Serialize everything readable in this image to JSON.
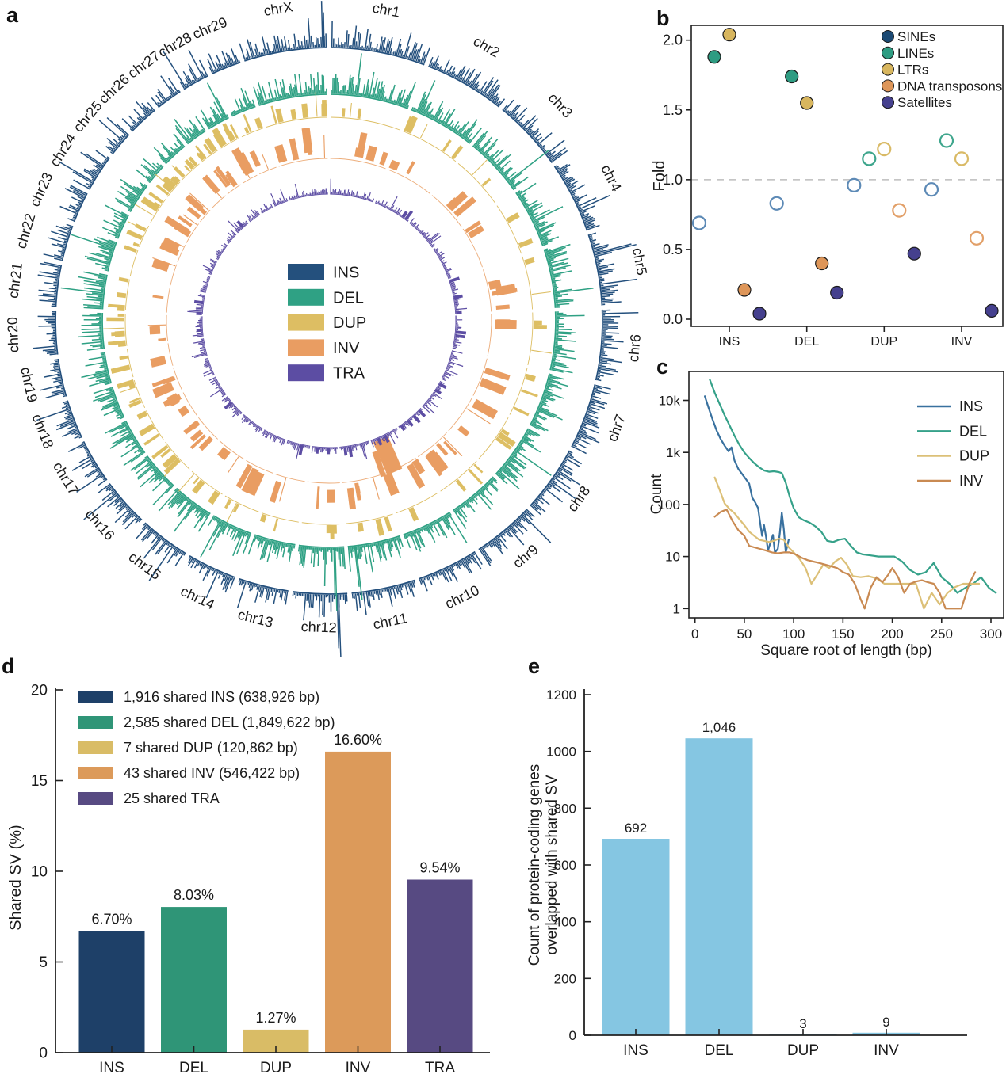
{
  "panels": {
    "a": "a",
    "b": "b",
    "c": "c",
    "d": "d",
    "e": "e"
  },
  "chart_data": [
    {
      "panel": "a",
      "type": "circos",
      "legend": [
        {
          "label": "INS",
          "color": "#24507d"
        },
        {
          "label": "DEL",
          "color": "#2fa184"
        },
        {
          "label": "DUP",
          "color": "#ddbe63"
        },
        {
          "label": "INV",
          "color": "#e99d62"
        },
        {
          "label": "TRA",
          "color": "#5c4da3"
        }
      ],
      "chromosomes": [
        {
          "name": "chr1",
          "length": 158
        },
        {
          "name": "chr2",
          "length": 136
        },
        {
          "name": "chr3",
          "length": 121
        },
        {
          "name": "chr4",
          "length": 120
        },
        {
          "name": "chr5",
          "length": 120
        },
        {
          "name": "chr6",
          "length": 118
        },
        {
          "name": "chr7",
          "length": 111
        },
        {
          "name": "chr8",
          "length": 113
        },
        {
          "name": "chr9",
          "length": 105
        },
        {
          "name": "chr10",
          "length": 104
        },
        {
          "name": "chr11",
          "length": 107
        },
        {
          "name": "chr12",
          "length": 91
        },
        {
          "name": "chr13",
          "length": 84
        },
        {
          "name": "chr14",
          "length": 84
        },
        {
          "name": "chr15",
          "length": 85
        },
        {
          "name": "chr16",
          "length": 81
        },
        {
          "name": "chr17",
          "length": 75
        },
        {
          "name": "chr18",
          "length": 66
        },
        {
          "name": "chr19",
          "length": 64
        },
        {
          "name": "chr20",
          "length": 72
        },
        {
          "name": "chr21",
          "length": 70
        },
        {
          "name": "chr22",
          "length": 61
        },
        {
          "name": "chr23",
          "length": 52
        },
        {
          "name": "chr24",
          "length": 63
        },
        {
          "name": "chr25",
          "length": 43
        },
        {
          "name": "chr26",
          "length": 52
        },
        {
          "name": "chr27",
          "length": 45
        },
        {
          "name": "chr28",
          "length": 46
        },
        {
          "name": "chr29",
          "length": 51
        },
        {
          "name": "chrX",
          "length": 139
        }
      ],
      "rings": {
        "ins": {
          "label": "INS",
          "r": 345,
          "h": 45,
          "color": "#24507d",
          "seed": 7,
          "features": [
            {
              "chrom": "chr12",
              "pos": 0.16,
              "h": 90
            },
            {
              "chrom": "chrX",
              "pos": 0.95,
              "h": 58
            }
          ]
        },
        "del": {
          "label": "DEL",
          "r": 286,
          "h": 55,
          "color": "#2fa184",
          "seed": 13,
          "features": [
            {
              "chrom": "chr12",
              "pos": 0.2,
              "h": 80
            },
            {
              "chrom": "chr11",
              "pos": 0.85,
              "h": 68
            }
          ]
        },
        "dup": {
          "label": "DUP",
          "r": 257,
          "h": 24,
          "color": "#ddbe63",
          "seed": 29
        },
        "inv": {
          "label": "INV",
          "r": 205,
          "h": 28,
          "color": "#e99d62",
          "seed": 41,
          "feature": {
            "angle": 156.5,
            "r0": 163,
            "h": 45,
            "width_deg": 6.3
          }
        },
        "tra": {
          "label": "TRA",
          "r": 160,
          "h": 14,
          "color": "#5c4da3",
          "seed": 53
        }
      }
    },
    {
      "panel": "b",
      "type": "scatter",
      "ylabel": "Fold",
      "yticks": [
        "0.0",
        "0.5",
        "1.0",
        "1.5",
        "2.0"
      ],
      "groups": [
        "INS",
        "DEL",
        "DUP",
        "INV"
      ],
      "refline": 1.0,
      "series": [
        {
          "name": "SINEs",
          "color": "#1c4a74",
          "open_color": "#5d8ab6",
          "values": [
            0.69,
            0.83,
            0.96,
            0.93
          ],
          "filled": [
            false,
            false,
            false,
            false
          ]
        },
        {
          "name": "LINEs",
          "color": "#2e9c82",
          "open_color": "#3fa68d",
          "values": [
            1.88,
            1.74,
            1.15,
            1.28
          ],
          "filled": [
            true,
            true,
            false,
            false
          ]
        },
        {
          "name": "LTRs",
          "color": "#d8b65e",
          "open_color": "#d9ba66",
          "values": [
            2.04,
            1.55,
            1.22,
            1.15
          ],
          "filled": [
            true,
            true,
            false,
            false
          ]
        },
        {
          "name": "DNA transposons",
          "color": "#de9659",
          "open_color": "#e2a069",
          "values": [
            0.21,
            0.4,
            0.78,
            0.58
          ],
          "filled": [
            true,
            true,
            false,
            false
          ]
        },
        {
          "name": "Satellites",
          "color": "#45408e",
          "open_color": "#45408e",
          "values": [
            0.04,
            0.19,
            0.47,
            0.06
          ],
          "filled": [
            true,
            true,
            true,
            true
          ]
        }
      ]
    },
    {
      "panel": "c",
      "type": "line",
      "xlabel": "Square root of length (bp)",
      "ylabel": "Count",
      "xticks": [
        0,
        50,
        100,
        150,
        200,
        250,
        300
      ],
      "ytick_values": [
        1,
        10,
        100,
        1000,
        10000
      ],
      "ytick_labels": [
        "1",
        "10",
        "100",
        "1k",
        "10k"
      ],
      "series": [
        {
          "name": "INS",
          "color": "#39719f",
          "points": [
            [
              10,
              12000
            ],
            [
              14,
              7000
            ],
            [
              18,
              4200
            ],
            [
              22,
              2600
            ],
            [
              26,
              1800
            ],
            [
              30,
              1350
            ],
            [
              34,
              1050
            ],
            [
              37,
              1250
            ],
            [
              40,
              700
            ],
            [
              44,
              480
            ],
            [
              48,
              380
            ],
            [
              52,
              300
            ],
            [
              55,
              250
            ],
            [
              58,
              135
            ],
            [
              61,
              110
            ],
            [
              64,
              85
            ],
            [
              66,
              45
            ],
            [
              68,
              25
            ],
            [
              70,
              40
            ],
            [
              72,
              24
            ],
            [
              74,
              13
            ],
            [
              77,
              20
            ],
            [
              79,
              26
            ],
            [
              81,
              12
            ],
            [
              84,
              14
            ],
            [
              86,
              28
            ],
            [
              88,
              70
            ],
            [
              90,
              34
            ],
            [
              92,
              12
            ],
            [
              95,
              21
            ]
          ]
        },
        {
          "name": "DEL",
          "color": "#35a189",
          "points": [
            [
              15,
              25000
            ],
            [
              20,
              14000
            ],
            [
              25,
              8500
            ],
            [
              30,
              5200
            ],
            [
              35,
              3300
            ],
            [
              40,
              2100
            ],
            [
              45,
              1400
            ],
            [
              50,
              1000
            ],
            [
              55,
              780
            ],
            [
              60,
              620
            ],
            [
              65,
              520
            ],
            [
              70,
              450
            ],
            [
              75,
              425
            ],
            [
              80,
              435
            ],
            [
              85,
              420
            ],
            [
              88,
              400
            ],
            [
              92,
              260
            ],
            [
              96,
              140
            ],
            [
              100,
              85
            ],
            [
              105,
              57
            ],
            [
              110,
              50
            ],
            [
              116,
              45
            ],
            [
              122,
              38
            ],
            [
              128,
              30
            ],
            [
              134,
              20
            ],
            [
              140,
              19
            ],
            [
              146,
              21
            ],
            [
              152,
              22
            ],
            [
              158,
              16
            ],
            [
              164,
              12
            ],
            [
              170,
              11
            ],
            [
              178,
              10.5
            ],
            [
              186,
              10
            ],
            [
              194,
              10
            ],
            [
              202,
              10
            ],
            [
              210,
              8
            ],
            [
              218,
              5.5
            ],
            [
              226,
              4.5
            ],
            [
              234,
              5
            ],
            [
              242,
              7.5
            ],
            [
              250,
              4
            ],
            [
              258,
              3
            ],
            [
              266,
              2
            ],
            [
              274,
              2.5
            ],
            [
              282,
              3
            ],
            [
              290,
              4
            ],
            [
              298,
              2.5
            ],
            [
              305,
              2
            ]
          ]
        },
        {
          "name": "DUP",
          "color": "#dcc078",
          "points": [
            [
              20,
              330
            ],
            [
              25,
              190
            ],
            [
              30,
              105
            ],
            [
              35,
              82
            ],
            [
              40,
              68
            ],
            [
              45,
              52
            ],
            [
              50,
              40
            ],
            [
              55,
              30
            ],
            [
              60,
              25
            ],
            [
              65,
              21
            ],
            [
              70,
              20
            ],
            [
              75,
              19
            ],
            [
              80,
              20
            ],
            [
              85,
              22
            ],
            [
              90,
              21
            ],
            [
              95,
              15
            ],
            [
              100,
              12
            ],
            [
              106,
              9
            ],
            [
              112,
              6
            ],
            [
              118,
              3
            ],
            [
              124,
              4.5
            ],
            [
              130,
              7
            ],
            [
              136,
              6
            ],
            [
              142,
              8
            ],
            [
              148,
              9.5
            ],
            [
              154,
              7
            ],
            [
              160,
              4.2
            ],
            [
              168,
              4
            ],
            [
              176,
              4.2
            ],
            [
              184,
              3.8
            ],
            [
              192,
              3
            ],
            [
              200,
              3
            ],
            [
              208,
              3
            ],
            [
              216,
              3
            ],
            [
              224,
              3
            ],
            [
              232,
              1
            ],
            [
              240,
              2
            ],
            [
              248,
              1.2
            ],
            [
              256,
              2
            ],
            [
              264,
              2.6
            ],
            [
              272,
              3
            ],
            [
              280,
              3
            ],
            [
              288,
              3
            ]
          ]
        },
        {
          "name": "INV",
          "color": "#c98a52",
          "points": [
            [
              20,
              58
            ],
            [
              26,
              72
            ],
            [
              32,
              80
            ],
            [
              38,
              48
            ],
            [
              44,
              32
            ],
            [
              50,
              25
            ],
            [
              55,
              16
            ],
            [
              60,
              15
            ],
            [
              66,
              14
            ],
            [
              72,
              13
            ],
            [
              78,
              12
            ],
            [
              84,
              11.5
            ],
            [
              90,
              12
            ],
            [
              96,
              12
            ],
            [
              102,
              11
            ],
            [
              108,
              9.5
            ],
            [
              114,
              8.5
            ],
            [
              120,
              8
            ],
            [
              126,
              7.5
            ],
            [
              132,
              7
            ],
            [
              138,
              6.5
            ],
            [
              144,
              6
            ],
            [
              150,
              5
            ],
            [
              156,
              4.5
            ],
            [
              162,
              3
            ],
            [
              168,
              1.5
            ],
            [
              172,
              1
            ],
            [
              178,
              2.5
            ],
            [
              184,
              4
            ],
            [
              190,
              3.2
            ],
            [
              196,
              4.5
            ],
            [
              200,
              6
            ],
            [
              206,
              4
            ],
            [
              212,
              2
            ],
            [
              218,
              3
            ],
            [
              224,
              3.3
            ],
            [
              230,
              3.5
            ],
            [
              236,
              3.2
            ],
            [
              242,
              3
            ],
            [
              248,
              2
            ],
            [
              254,
              1
            ],
            [
              262,
              1
            ],
            [
              270,
              1
            ],
            [
              278,
              3
            ],
            [
              284,
              5
            ]
          ]
        }
      ]
    },
    {
      "panel": "d",
      "type": "bar",
      "ylabel": "Shared SV (%)",
      "ylim": [
        0,
        20
      ],
      "yticks": [
        0,
        5,
        10,
        15,
        20
      ],
      "categories": [
        "INS",
        "DEL",
        "DUP",
        "INV",
        "TRA"
      ],
      "values": [
        6.7,
        8.03,
        1.27,
        16.6,
        9.54
      ],
      "value_labels": [
        "6.70%",
        "8.03%",
        "1.27%",
        "16.60%",
        "9.54%"
      ],
      "colors": [
        "#1e4068",
        "#2f9577",
        "#d9bc66",
        "#dc9a5a",
        "#574a82"
      ],
      "legend": [
        "1,916 shared INS (638,926 bp)",
        "2,585 shared DEL (1,849,622 bp)",
        "7 shared DUP (120,862 bp)",
        "43 shared INV (546,422 bp)",
        "25 shared TRA"
      ]
    },
    {
      "panel": "e",
      "type": "bar",
      "ylabel_lines": [
        "Count of protein-coding genes",
        "overlapped with shared SV"
      ],
      "ylim": [
        0,
        1200
      ],
      "yticks": [
        0,
        200,
        400,
        600,
        800,
        1000,
        1200
      ],
      "categories": [
        "INS",
        "DEL",
        "DUP",
        "INV"
      ],
      "values": [
        692,
        1046,
        3,
        9
      ],
      "value_labels": [
        "692",
        "1,046",
        "3",
        "9"
      ],
      "bar_color": "#85c6e2"
    }
  ]
}
